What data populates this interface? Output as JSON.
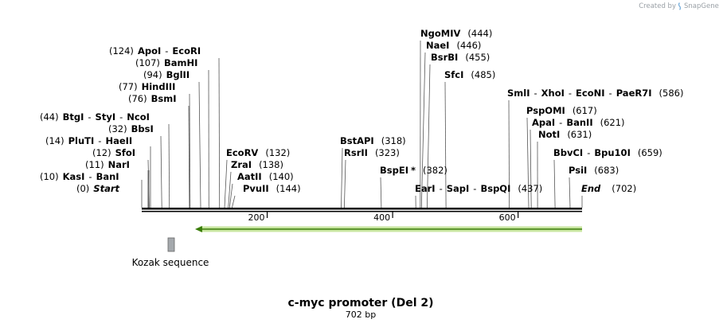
{
  "credit": {
    "prefix": "Created by",
    "brand": "SnapGene"
  },
  "sequence": {
    "name": "c-myc promoter (Del 2)",
    "length_label": "702 bp",
    "length_bp": 702
  },
  "axis_ticks": [
    {
      "bp": 200,
      "label": "200"
    },
    {
      "bp": 400,
      "label": "400"
    },
    {
      "bp": 600,
      "label": "600"
    }
  ],
  "sites": [
    {
      "bp": 0,
      "names": [
        "Start"
      ],
      "position_label": "(0)",
      "kind": "terminus"
    },
    {
      "bp": 10,
      "names": [
        "KasI",
        "BanI"
      ],
      "position_label": "(10)"
    },
    {
      "bp": 11,
      "names": [
        "NarI"
      ],
      "position_label": "(11)"
    },
    {
      "bp": 12,
      "names": [
        "SfoI"
      ],
      "position_label": "(12)"
    },
    {
      "bp": 14,
      "names": [
        "PluTI",
        "HaeII"
      ],
      "position_label": "(14)"
    },
    {
      "bp": 32,
      "names": [
        "BbsI"
      ],
      "position_label": "(32)"
    },
    {
      "bp": 44,
      "names": [
        "BtgI",
        "StyI",
        "NcoI"
      ],
      "position_label": "(44)"
    },
    {
      "bp": 76,
      "names": [
        "BsmI"
      ],
      "position_label": "(76)"
    },
    {
      "bp": 77,
      "names": [
        "HindIII"
      ],
      "position_label": "(77)"
    },
    {
      "bp": 94,
      "names": [
        "BglII"
      ],
      "position_label": "(94)"
    },
    {
      "bp": 107,
      "names": [
        "BamHI"
      ],
      "position_label": "(107)"
    },
    {
      "bp": 124,
      "names": [
        "ApoI",
        "EcoRI"
      ],
      "position_label": "(124)"
    },
    {
      "bp": 132,
      "names": [
        "EcoRV"
      ],
      "position_label": "(132)"
    },
    {
      "bp": 138,
      "names": [
        "ZraI"
      ],
      "position_label": "(138)"
    },
    {
      "bp": 140,
      "names": [
        "AatII"
      ],
      "position_label": "(140)"
    },
    {
      "bp": 144,
      "names": [
        "PvuII"
      ],
      "position_label": "(144)"
    },
    {
      "bp": 318,
      "names": [
        "BstAPI"
      ],
      "position_label": "(318)"
    },
    {
      "bp": 323,
      "names": [
        "RsrII"
      ],
      "position_label": "(323)"
    },
    {
      "bp": 382,
      "names": [
        "BspEI"
      ],
      "position_label": "(382)",
      "marker": "*"
    },
    {
      "bp": 437,
      "names": [
        "EarI",
        "SapI",
        "BspQI"
      ],
      "position_label": "(437)"
    },
    {
      "bp": 444,
      "names": [
        "NgoMIV"
      ],
      "position_label": "(444)"
    },
    {
      "bp": 446,
      "names": [
        "NaeI"
      ],
      "position_label": "(446)"
    },
    {
      "bp": 455,
      "names": [
        "BsrBI"
      ],
      "position_label": "(455)"
    },
    {
      "bp": 485,
      "names": [
        "SfcI"
      ],
      "position_label": "(485)"
    },
    {
      "bp": 586,
      "names": [
        "SmlI",
        "XhoI",
        "EcoNI",
        "PaeR7I"
      ],
      "position_label": "(586)"
    },
    {
      "bp": 617,
      "names": [
        "PspOMI"
      ],
      "position_label": "(617)"
    },
    {
      "bp": 621,
      "names": [
        "ApaI",
        "BanII"
      ],
      "position_label": "(621)"
    },
    {
      "bp": 631,
      "names": [
        "NotI"
      ],
      "position_label": "(631)"
    },
    {
      "bp": 659,
      "names": [
        "BbvCI",
        "Bpu10I"
      ],
      "position_label": "(659)"
    },
    {
      "bp": 683,
      "names": [
        "PsiI"
      ],
      "position_label": "(683)"
    },
    {
      "bp": 702,
      "names": [
        "End"
      ],
      "position_label": "(702)",
      "kind": "terminus"
    }
  ],
  "features": [
    {
      "name": "c-myc promoter",
      "start_bp": 85,
      "end_bp": 702,
      "direction": "reverse",
      "color": "#7cc242",
      "show_label": false
    },
    {
      "name": "Kozak sequence",
      "start_bp": 42,
      "end_bp": 52,
      "color": "#a5a9ad",
      "show_label": true
    }
  ],
  "colors": {
    "backbone": "#000000",
    "leader": "#555555",
    "arrow_fill": "#c8e6a0",
    "arrow_line": "#3a7d0a"
  }
}
